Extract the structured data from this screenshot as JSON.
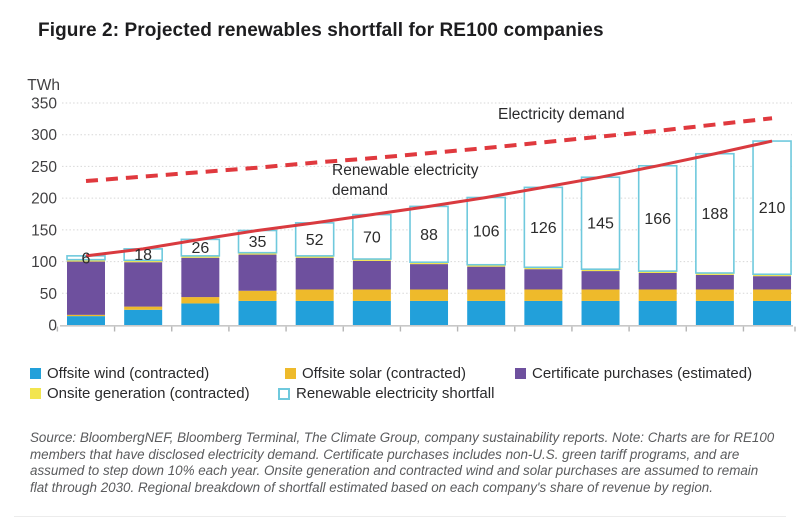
{
  "title": "Figure 2: Projected renewables shortfall for RE100 companies",
  "y_axis": {
    "unit_label": "TWh",
    "ticks": [
      0,
      50,
      100,
      150,
      200,
      250,
      300,
      350
    ]
  },
  "annotations": {
    "electricity_demand": "Electricity demand",
    "renewable_demand": "Renewable electricity\ndemand"
  },
  "legend": {
    "items": [
      {
        "label": "Offsite wind (contracted)",
        "color": "#22a0da"
      },
      {
        "label": "Offsite solar (contracted)",
        "color": "#eeba2b"
      },
      {
        "label": "Certificate purchases (estimated)",
        "color": "#6e509e"
      },
      {
        "label": "Onsite generation (contracted)",
        "color": "#f2e54f"
      },
      {
        "label": "Renewable electricity shortfall",
        "color": "#ffffff",
        "border": "#6fc9dd"
      }
    ]
  },
  "source_note": "Source: BloombergNEF, Bloomberg Terminal, The Climate Group, company sustainability reports. Note: Charts are for RE100 members that have disclosed electricity demand. Certificate purchases includes non-U.S. green tariff programs, and are assumed to step down 10% each year. Onsite generation and contracted wind and solar purchases are assumed to remain flat through 2030. Regional breakdown of shortfall estimated based on each company's share of revenue by region.",
  "colors": {
    "demand_line_red": "#e0393e",
    "grid": "#d7d7d7",
    "axis": "#c8c8c8",
    "shortfall_border": "#6fc9dd"
  },
  "chart_data": {
    "type": "bar",
    "stacked": true,
    "num_bars": 13,
    "x_labels_visible": false,
    "title": "Figure 2: Projected renewables shortfall for RE100 companies",
    "xlabel": "",
    "ylabel": "TWh",
    "ylim": [
      0,
      350
    ],
    "grid": true,
    "legend_position": "bottom",
    "series": [
      {
        "id": "offsite-wind",
        "name": "Offsite wind (contracted)",
        "color": "#22a0da",
        "values": [
          14,
          24,
          34,
          38,
          38,
          38,
          38,
          38,
          38,
          38,
          38,
          38,
          38
        ]
      },
      {
        "id": "offsite-solar",
        "name": "Offsite solar (contracted)",
        "color": "#eeba2b",
        "values": [
          2,
          5,
          10,
          16,
          18,
          18,
          18,
          18,
          18,
          18,
          18,
          18,
          18
        ]
      },
      {
        "id": "certificates",
        "name": "Certificate purchases (estimated)",
        "color": "#6e509e",
        "values": [
          84,
          70,
          62,
          57,
          50,
          45,
          40,
          36,
          32,
          29,
          26,
          23,
          21
        ]
      },
      {
        "id": "onsite-generation",
        "name": "Onsite generation (contracted)",
        "color": "#f2e54f",
        "values": [
          3,
          3,
          3,
          3,
          3,
          3,
          3,
          3,
          3,
          3,
          3,
          3,
          3
        ]
      },
      {
        "id": "shortfall",
        "name": "Renewable electricity shortfall",
        "color": "#ffffff",
        "border": "#6fc9dd",
        "values": [
          6,
          18,
          26,
          35,
          52,
          70,
          88,
          106,
          126,
          145,
          166,
          188,
          210
        ]
      }
    ],
    "bar_value_labels": [
      6,
      18,
      26,
      35,
      52,
      70,
      88,
      106,
      126,
      145,
      166,
      188,
      210
    ],
    "lines": [
      {
        "name": "Renewable electricity demand",
        "style": "solid",
        "color": "#d93a3f",
        "values": [
          109,
          120,
          135,
          149,
          161,
          174,
          187,
          201,
          217,
          233,
          251,
          270,
          290
        ]
      },
      {
        "name": "Electricity demand",
        "style": "dashed",
        "color": "#e0393e",
        "values": [
          227,
          234,
          241,
          248,
          256,
          263,
          271,
          279,
          288,
          297,
          306,
          316,
          326
        ]
      }
    ]
  }
}
